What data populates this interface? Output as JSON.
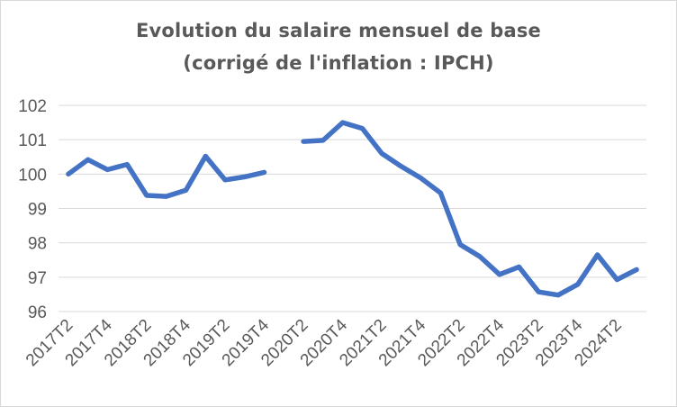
{
  "chart_data": {
    "type": "line",
    "title": "Evolution du salaire mensuel de base",
    "subtitle": "(corrigé de l'inflation : IPCH)",
    "xlabel": "",
    "ylabel": "",
    "ylim": [
      96,
      102
    ],
    "yticks": [
      96,
      97,
      98,
      99,
      100,
      101,
      102
    ],
    "grid": true,
    "legend": "none",
    "line_color": "#4472C4",
    "x": [
      "2017T2",
      "2017T3",
      "2017T4",
      "2018T1",
      "2018T2",
      "2018T3",
      "2018T4",
      "2019T1",
      "2019T2",
      "2019T3",
      "2019T4",
      "2020T1",
      "2020T2",
      "2020T3",
      "2020T4",
      "2021T1",
      "2021T2",
      "2021T3",
      "2021T4",
      "2022T1",
      "2022T2",
      "2022T3",
      "2022T4",
      "2023T1",
      "2023T2",
      "2023T3",
      "2023T4",
      "2024T1",
      "2024T2",
      "2024T3"
    ],
    "xtick_labels": [
      "2017T2",
      "2017T4",
      "2018T2",
      "2018T4",
      "2019T2",
      "2019T4",
      "2020T2",
      "2020T4",
      "2021T2",
      "2021T4",
      "2022T2",
      "2022T4",
      "2023T2",
      "2023T4",
      "2024T2"
    ],
    "series": [
      {
        "values": [
          100.0,
          100.42,
          100.13,
          100.28,
          99.38,
          99.35,
          99.53,
          100.52,
          99.83,
          99.92,
          100.05,
          null,
          100.95,
          100.98,
          101.5,
          101.33,
          100.6,
          100.22,
          99.88,
          99.45,
          97.95,
          97.6,
          97.08,
          97.3,
          96.57,
          96.48,
          96.79,
          97.65,
          96.93,
          97.22
        ]
      }
    ]
  }
}
